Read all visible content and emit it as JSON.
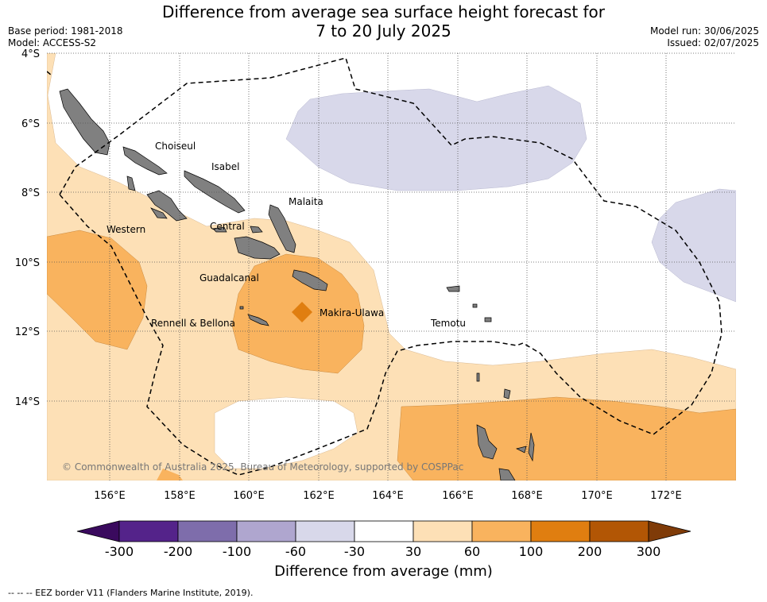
{
  "title": {
    "line1": "Difference from average sea surface height forecast for",
    "line2": "7 to 20 July 2025"
  },
  "meta": {
    "base_period": "Base period: 1981-2018",
    "model": "Model: ACCESS-S2",
    "model_run": "Model run: 30/06/2025",
    "issued": "Issued: 02/07/2025"
  },
  "map": {
    "lat_labels": [
      "4°S",
      "6°S",
      "8°S",
      "10°S",
      "12°S",
      "14°S"
    ],
    "lon_labels": [
      "156°E",
      "158°E",
      "160°E",
      "162°E",
      "164°E",
      "166°E",
      "168°E",
      "170°E",
      "172°E"
    ],
    "places": [
      "Choiseul",
      "Isabel",
      "Malaita",
      "Western",
      "Central",
      "Guadalcanal",
      "Makira-Ulawa",
      "Rennell & Bellona",
      "Temotu"
    ],
    "copyright": "© Commonwealth of Australia 2025, Bureau of Meteorology, supported by COSPPac",
    "colors": {
      "land": "#808080",
      "low_30_60": "#fde0b6",
      "mid_60_100": "#f9b35e",
      "high_100_200": "#e07e10",
      "neg_30_60": "#d8d8ea"
    }
  },
  "colorbar": {
    "title": "Difference from average (mm)",
    "ticks": [
      "-300",
      "-200",
      "-100",
      "-60",
      "-30",
      "30",
      "60",
      "100",
      "200",
      "300"
    ],
    "colors": [
      "#54238a",
      "#7e6dab",
      "#afa6cf",
      "#d8d8ea",
      "#ffffff",
      "#fde0b6",
      "#f9b35e",
      "#e07e10",
      "#b25605"
    ],
    "extend_low": "#3a0a5e",
    "extend_high": "#7f3b08"
  },
  "footer": "--  --  -- EEZ border V11 (Flanders Marine Institute, 2019)."
}
